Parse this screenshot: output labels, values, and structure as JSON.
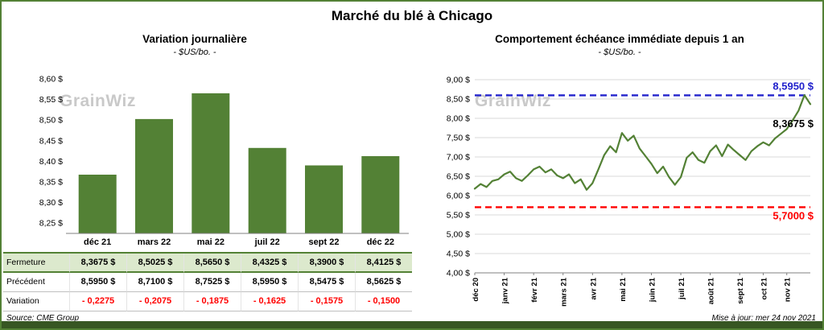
{
  "header": {
    "title": "Marché du blé à Chicago"
  },
  "watermark": "GrainWiz",
  "footer": {
    "source": "Source: CME Group",
    "updated": "Mise à jour: mer 24 nov 2021"
  },
  "colors": {
    "green": "#538135",
    "dark_green": "#375623",
    "light_green_row": "#dce9cd",
    "red": "#ff0000",
    "blue": "#2222cc",
    "grid": "#d9d9d9",
    "axis": "#808080"
  },
  "table": {
    "rows": [
      {
        "label": "Fermeture",
        "values": [
          "8,3675 $",
          "8,5025 $",
          "8,5650 $",
          "8,4325 $",
          "8,3900 $",
          "8,4125 $"
        ]
      },
      {
        "label": "Précédent",
        "values": [
          "8,5950 $",
          "8,7100 $",
          "8,7525 $",
          "8,5950 $",
          "8,5475 $",
          "8,5625 $"
        ]
      },
      {
        "label": "Variation",
        "values": [
          "- 0,2275",
          "- 0,2075",
          "- 0,1875",
          "- 0,1625",
          "- 0,1575",
          "- 0,1500"
        ]
      }
    ]
  },
  "chart_data": [
    {
      "type": "bar",
      "title": "Variation journalière",
      "subtitle": "- $US/bo. -",
      "categories": [
        "déc 21",
        "mars 22",
        "mai 22",
        "juil 22",
        "sept 22",
        "déc 22"
      ],
      "values": [
        8.3675,
        8.5025,
        8.565,
        8.4325,
        8.39,
        8.4125
      ],
      "ylim": [
        8.225,
        8.6
      ],
      "yticks": [
        8.6,
        8.55,
        8.5,
        8.45,
        8.4,
        8.35,
        8.3,
        8.25
      ],
      "ylabel": "$US/bo.",
      "grid": false,
      "bar_color": "#538135"
    },
    {
      "type": "line",
      "title": "Comportement échéance immédiate depuis 1 an",
      "subtitle": "- $US/bo. -",
      "x_ticks": [
        "déc 20",
        "janv 21",
        "févr 21",
        "mars 21",
        "avr 21",
        "mai 21",
        "juin 21",
        "juil 21",
        "août 21",
        "sept 21",
        "oct 21",
        "nov 21"
      ],
      "x_tick_indices": [
        0,
        5,
        10,
        15,
        20,
        25,
        30,
        35,
        40,
        45,
        49,
        53
      ],
      "values": [
        6.18,
        6.3,
        6.22,
        6.38,
        6.42,
        6.55,
        6.62,
        6.45,
        6.38,
        6.52,
        6.68,
        6.75,
        6.6,
        6.68,
        6.52,
        6.45,
        6.55,
        6.32,
        6.42,
        6.15,
        6.32,
        6.68,
        7.05,
        7.28,
        7.12,
        7.62,
        7.42,
        7.55,
        7.22,
        7.02,
        6.82,
        6.58,
        6.75,
        6.48,
        6.28,
        6.48,
        6.98,
        7.12,
        6.92,
        6.85,
        7.15,
        7.3,
        7.02,
        7.32,
        7.18,
        7.05,
        6.92,
        7.15,
        7.28,
        7.38,
        7.3,
        7.48,
        7.6,
        7.72,
        7.95,
        8.2,
        8.6,
        8.3675
      ],
      "ylim": [
        4.0,
        9.0
      ],
      "ytick_step": 0.5,
      "ylabel": "$US/bo.",
      "grid": true,
      "line_color": "#538135",
      "reference_lines": [
        {
          "label": "8,5950 $",
          "value": 8.595,
          "color": "#2222cc",
          "style": "dashed"
        },
        {
          "label": "5,7000 $",
          "value": 5.7,
          "color": "#ff0000",
          "style": "dashed"
        }
      ],
      "last_value_label": {
        "label": "8,3675 $",
        "value": 8.3675
      }
    }
  ]
}
